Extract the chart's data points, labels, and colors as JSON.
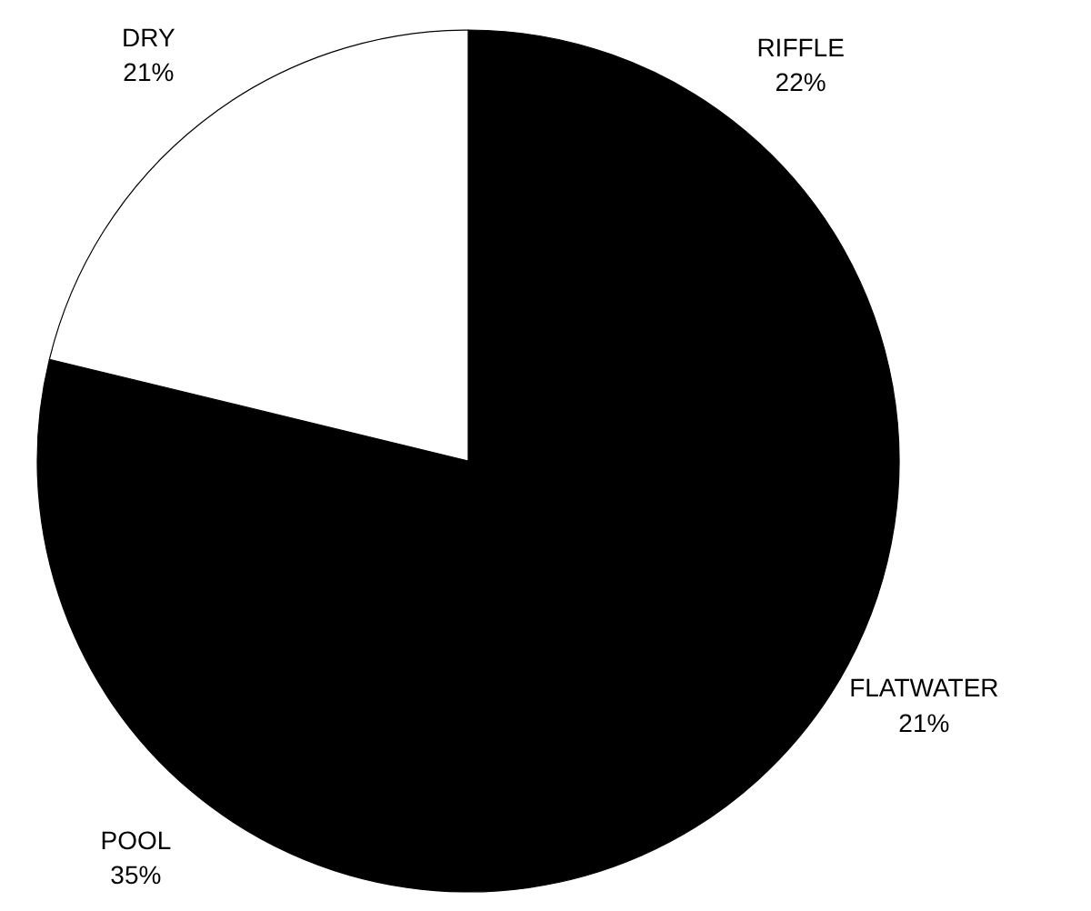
{
  "chart_data": {
    "type": "pie",
    "categories": [
      "RIFFLE",
      "FLATWATER",
      "POOL",
      "DRY"
    ],
    "values": [
      22,
      21,
      35,
      21
    ],
    "colors": [
      "#000000",
      "#000000",
      "#000000",
      "#ffffff"
    ],
    "value_labels": [
      "22%",
      "21%",
      "35%",
      "21%"
    ]
  }
}
